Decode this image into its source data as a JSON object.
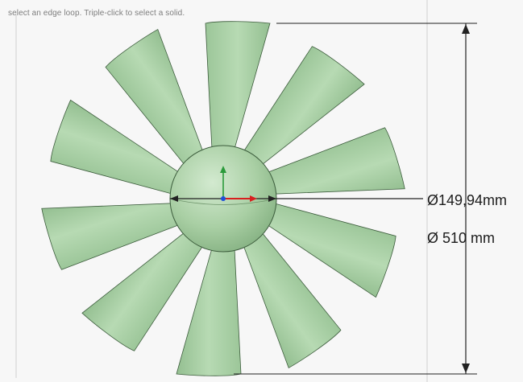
{
  "status_hint": "select an edge loop. Triple-click to select a solid.",
  "dimensions": {
    "hub_diameter": "Ø149,94mm",
    "outer_diameter": "Ø 510 mm"
  },
  "colors": {
    "blade_fill": "#a9cfa6",
    "blade_stroke": "#3c5c3c",
    "hub_fill": "#b6d7b0",
    "dimension_line": "#222222",
    "axis_y": "#2a9a3a",
    "axis_x": "#d81f1f",
    "axis_origin": "#1f4fd8"
  },
  "icons": [
    "axis-gizmo-icon",
    "diameter-symbol-icon"
  ]
}
